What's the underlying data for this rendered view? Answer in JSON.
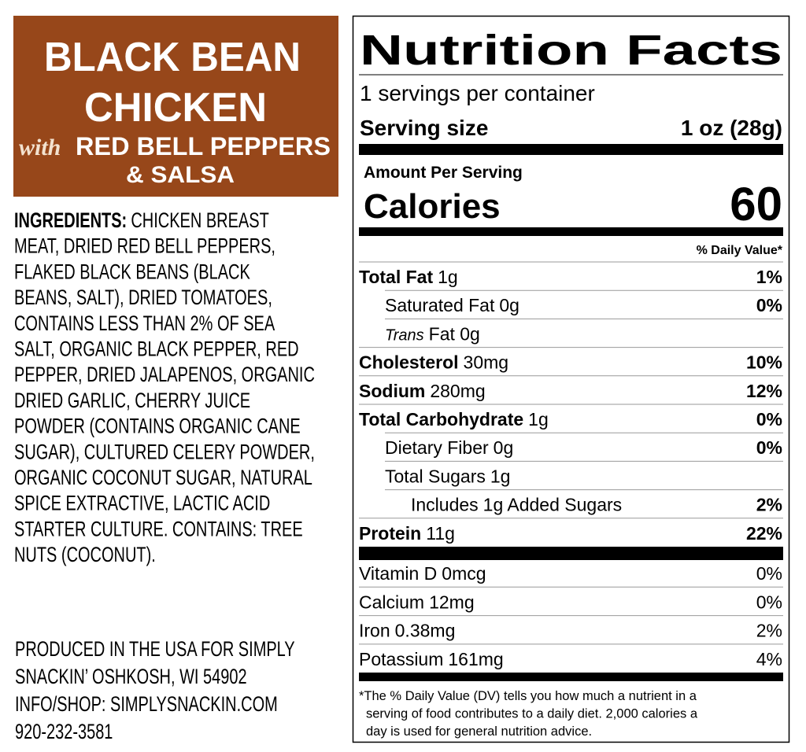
{
  "product": {
    "title_lines": [
      "BLACK BEAN",
      "CHICKEN"
    ],
    "with": "with",
    "subtitle_lines": [
      "RED BELL PEPPERS",
      "& SALSA"
    ]
  },
  "ingredients": {
    "label": "INGREDIENTS:",
    "lines": [
      "CHICKEN BREAST",
      "MEAT, DRIED RED BELL PEPPERS,",
      "FLAKED BLACK BEANS (BLACK",
      "BEANS, SALT), DRIED TOMATOES,",
      "CONTAINS LESS THAN 2% OF SEA",
      "SALT, ORGANIC BLACK PEPPER, RED",
      "PEPPER, DRIED JALAPENOS, ORGANIC",
      "DRIED GARLIC, CHERRY JUICE",
      "POWDER (CONTAINS ORGANIC CANE",
      "SUGAR), CULTURED CELERY POWDER,",
      "ORGANIC COCONUT SUGAR, NATURAL",
      "SPICE EXTRACTIVE, LACTIC ACID",
      "STARTER CULTURE. CONTAINS: TREE",
      "NUTS (COCONUT)."
    ]
  },
  "producer": {
    "lines": [
      "PRODUCED IN THE USA FOR SIMPLY",
      "SNACKIN’ OSHKOSH, WI 54902",
      "INFO/SHOP: SIMPLYSNACKIN.COM",
      "920-232-3581"
    ]
  },
  "nutrition": {
    "title": "Nutrition Facts",
    "servings": "1 servings per container",
    "serving_size_label": "Serving size",
    "serving_size": "1 oz (28g)",
    "amount_per_serving": "Amount Per Serving",
    "calories_label": "Calories",
    "calories": 60,
    "dv_header": "% Daily Value*",
    "nutrients": [
      {
        "name": "Total Fat",
        "amount": "1g",
        "dv": "1%",
        "indent": 0,
        "bold": true
      },
      {
        "name": "Saturated Fat",
        "amount": "0g",
        "dv": "0%",
        "indent": 1,
        "bold": false
      },
      {
        "name": "Trans",
        "amount": "Fat 0g",
        "indent": 1,
        "bold": false,
        "italic": true
      },
      {
        "name": "Cholesterol",
        "amount": "30mg",
        "dv": "10%",
        "indent": 0,
        "bold": true
      },
      {
        "name": "Sodium",
        "amount": "280mg",
        "dv": "12%",
        "indent": 0,
        "bold": true
      },
      {
        "name": "Total Carbohydrate",
        "amount": "1g",
        "dv": "0%",
        "indent": 0,
        "bold": true
      },
      {
        "name": "Dietary Fiber",
        "amount": "0g",
        "dv": "0%",
        "indent": 1,
        "bold": false
      },
      {
        "name": "Total Sugars",
        "amount": "1g",
        "indent": 1,
        "bold": false
      },
      {
        "name": "Includes",
        "amount": "1g Added Sugars",
        "dv": "2%",
        "indent": 2,
        "bold": false
      },
      {
        "name": "Protein",
        "amount": "11g",
        "dv": "22%",
        "indent": 0,
        "bold": true
      }
    ],
    "micronutrients": [
      {
        "name": "Vitamin D",
        "amount": "0mcg",
        "dv": "0%"
      },
      {
        "name": "Calcium",
        "amount": "12mg",
        "dv": "0%"
      },
      {
        "name": "Iron",
        "amount": "0.38mg",
        "dv": "2%"
      },
      {
        "name": "Potassium",
        "amount": "161mg",
        "dv": "4%"
      }
    ],
    "footnote_lines": [
      "*The % Daily Value (DV) tells you how much a nutrient in a",
      "serving of food contributes to a daily diet. 2,000 calories a",
      "day is used for general nutrition advice."
    ]
  }
}
